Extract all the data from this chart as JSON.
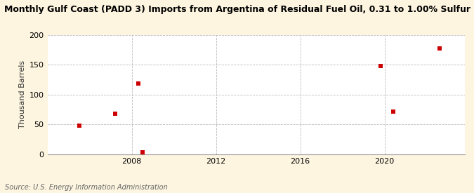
{
  "title": "Monthly Gulf Coast (PADD 3) Imports from Argentina of Residual Fuel Oil, 0.31 to 1.00% Sulfur",
  "ylabel": "Thousand Barrels",
  "source": "Source: U.S. Energy Information Administration",
  "background_color": "#fdf5e0",
  "plot_background_color": "#ffffff",
  "data_points": [
    [
      2005.5,
      48
    ],
    [
      2007.2,
      68
    ],
    [
      2008.3,
      118
    ],
    [
      2008.5,
      3
    ],
    [
      2019.8,
      148
    ],
    [
      2020.4,
      71
    ],
    [
      2022.6,
      177
    ]
  ],
  "marker_color": "#cc0000",
  "marker_size": 4,
  "xlim": [
    2004.0,
    2023.8
  ],
  "ylim": [
    0,
    200
  ],
  "xticks": [
    2008,
    2012,
    2016,
    2020
  ],
  "yticks": [
    0,
    50,
    100,
    150,
    200
  ],
  "grid_color": "#bbbbbb",
  "title_fontsize": 9.0,
  "label_fontsize": 8.0,
  "tick_fontsize": 8.0,
  "source_fontsize": 7.0
}
